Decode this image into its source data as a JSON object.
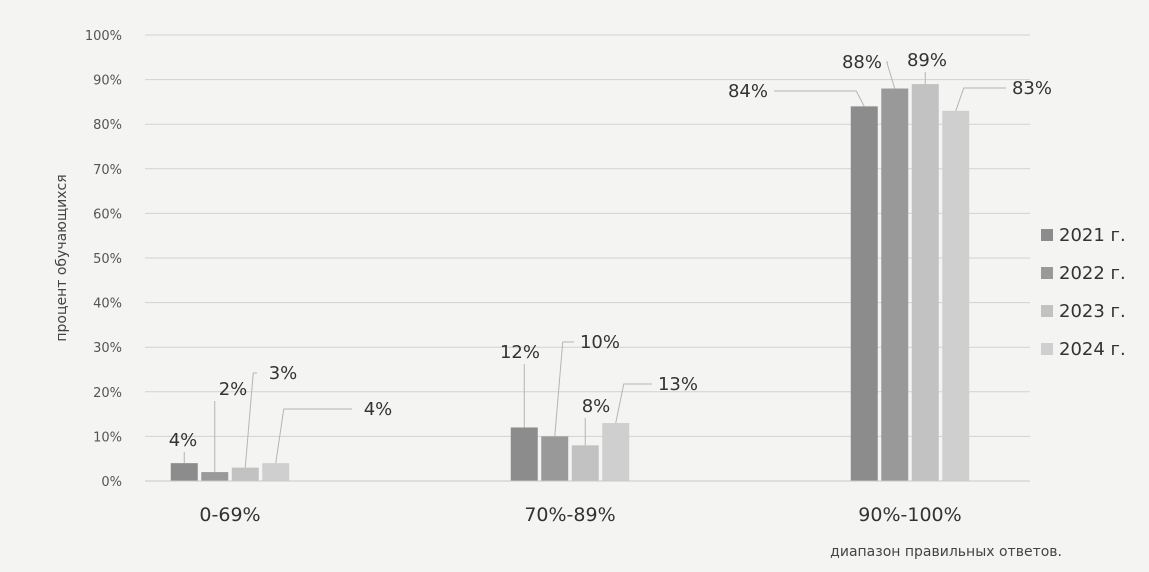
{
  "chart_data": {
    "type": "bar",
    "categories": [
      "0-69%",
      "70%-89%",
      "90%-100%"
    ],
    "series": [
      {
        "name": "2021 г.",
        "values": [
          4,
          12,
          84
        ],
        "color": "#8c8c8c"
      },
      {
        "name": "2022 г.",
        "values": [
          2,
          10,
          88
        ],
        "color": "#999999"
      },
      {
        "name": "2023 г.",
        "values": [
          3,
          8,
          89
        ],
        "color": "#c2c2c2"
      },
      {
        "name": "2024 г.",
        "values": [
          4,
          13,
          83
        ],
        "color": "#cfcfcf"
      }
    ],
    "data_labels": [
      [
        "4%",
        "12%",
        "84%"
      ],
      [
        "2%",
        "10%",
        "88%"
      ],
      [
        "3%",
        "8%",
        "89%"
      ],
      [
        "4%",
        "13%",
        "83%"
      ]
    ],
    "y_ticks": [
      "0%",
      "10%",
      "20%",
      "30%",
      "40%",
      "50%",
      "60%",
      "70%",
      "80%",
      "90%",
      "100%"
    ],
    "ylim": [
      0,
      100
    ],
    "xlabel": "диапазон правильных ответов.",
    "ylabel": "процент обучающихся",
    "grid": true,
    "legend_position": "right"
  }
}
